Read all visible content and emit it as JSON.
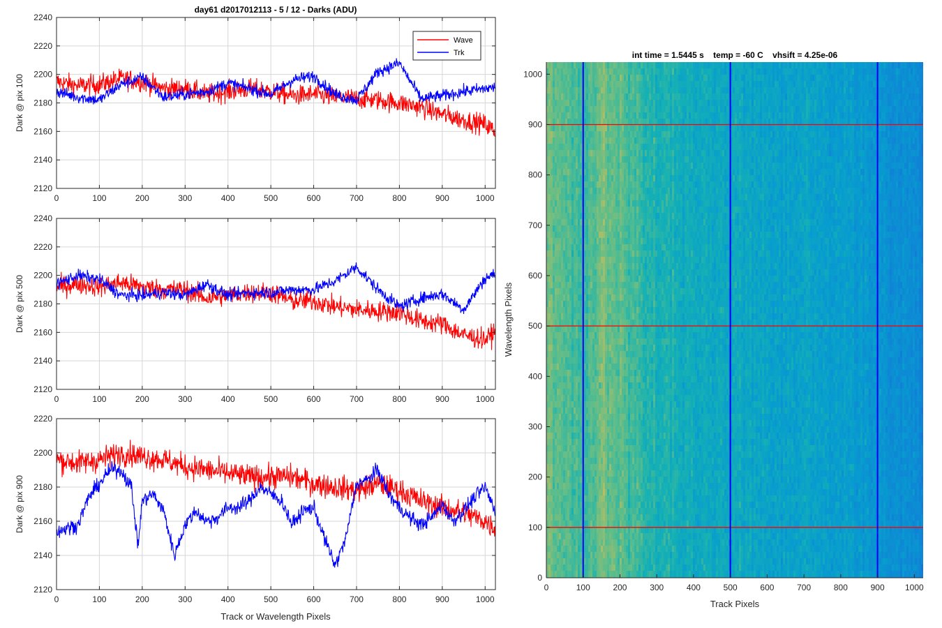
{
  "figure": {
    "main_title": "day61 d2017012113 - 5 / 12 - Darks (ADU)",
    "image_title": "int time = 1.5445 s    temp = -60 C    vhsift = 4.25e-06"
  },
  "colors": {
    "wave": "#ff0000",
    "trk": "#0000ff",
    "grid": "#d6d6d6",
    "axis": "#262626"
  },
  "chart_data": [
    {
      "type": "line",
      "ylabel": "Dark @ pix 100",
      "xlim": [
        0,
        1024
      ],
      "ylim": [
        2120,
        2240
      ],
      "xticks": [
        0,
        100,
        200,
        300,
        400,
        500,
        600,
        700,
        800,
        900,
        1000
      ],
      "yticks": [
        2120,
        2140,
        2160,
        2180,
        2200,
        2220,
        2240
      ],
      "grid": true,
      "legend": {
        "position": "top-right",
        "entries": [
          "Wave",
          "Trk"
        ]
      },
      "series": [
        {
          "name": "Wave",
          "color": "#ff0000",
          "x": [
            0,
            50,
            100,
            150,
            200,
            250,
            300,
            350,
            400,
            450,
            500,
            550,
            600,
            650,
            700,
            750,
            800,
            850,
            900,
            950,
            1000,
            1023
          ],
          "values": [
            2195,
            2192,
            2193,
            2197,
            2195,
            2190,
            2190,
            2186,
            2188,
            2190,
            2188,
            2185,
            2186,
            2184,
            2183,
            2182,
            2180,
            2177,
            2172,
            2168,
            2165,
            2160
          ]
        },
        {
          "name": "Trk",
          "color": "#0000ff",
          "x": [
            0,
            50,
            100,
            150,
            200,
            250,
            300,
            350,
            400,
            450,
            500,
            550,
            600,
            650,
            700,
            750,
            800,
            850,
            900,
            950,
            1000,
            1023
          ],
          "values": [
            2188,
            2184,
            2182,
            2193,
            2198,
            2184,
            2186,
            2188,
            2194,
            2190,
            2186,
            2196,
            2199,
            2186,
            2182,
            2202,
            2208,
            2183,
            2185,
            2188,
            2190,
            2191
          ]
        }
      ]
    },
    {
      "type": "line",
      "ylabel": "Dark @ pix 500",
      "xlim": [
        0,
        1024
      ],
      "ylim": [
        2120,
        2240
      ],
      "xticks": [
        0,
        100,
        200,
        300,
        400,
        500,
        600,
        700,
        800,
        900,
        1000
      ],
      "yticks": [
        2120,
        2140,
        2160,
        2180,
        2200,
        2220,
        2240
      ],
      "grid": true,
      "series": [
        {
          "name": "Wave",
          "color": "#ff0000",
          "x": [
            0,
            50,
            100,
            150,
            200,
            250,
            300,
            350,
            400,
            450,
            500,
            550,
            600,
            650,
            700,
            750,
            800,
            850,
            900,
            950,
            1000,
            1023
          ],
          "values": [
            2192,
            2194,
            2192,
            2195,
            2192,
            2190,
            2190,
            2184,
            2186,
            2188,
            2188,
            2182,
            2182,
            2178,
            2176,
            2175,
            2174,
            2168,
            2166,
            2158,
            2155,
            2160
          ]
        },
        {
          "name": "Trk",
          "color": "#0000ff",
          "x": [
            0,
            50,
            100,
            150,
            200,
            250,
            300,
            350,
            400,
            450,
            500,
            550,
            600,
            650,
            700,
            750,
            800,
            850,
            900,
            950,
            1000,
            1023
          ],
          "values": [
            2194,
            2200,
            2197,
            2186,
            2186,
            2188,
            2186,
            2194,
            2186,
            2188,
            2188,
            2190,
            2190,
            2196,
            2206,
            2190,
            2178,
            2184,
            2187,
            2176,
            2198,
            2201
          ]
        }
      ]
    },
    {
      "type": "line",
      "ylabel": "Dark @ pix 900",
      "xlabel": "Track or Wavelength Pixels",
      "xlim": [
        0,
        1024
      ],
      "ylim": [
        2120,
        2220
      ],
      "xticks": [
        0,
        100,
        200,
        300,
        400,
        500,
        600,
        700,
        800,
        900,
        1000
      ],
      "yticks": [
        2120,
        2140,
        2160,
        2180,
        2200,
        2220
      ],
      "grid": true,
      "series": [
        {
          "name": "Wave",
          "color": "#ff0000",
          "x": [
            0,
            50,
            100,
            150,
            200,
            250,
            300,
            350,
            400,
            450,
            500,
            550,
            600,
            650,
            700,
            750,
            800,
            850,
            900,
            950,
            1000,
            1023
          ],
          "values": [
            2196,
            2194,
            2196,
            2200,
            2198,
            2196,
            2192,
            2190,
            2188,
            2186,
            2186,
            2186,
            2182,
            2180,
            2178,
            2182,
            2178,
            2172,
            2168,
            2165,
            2160,
            2156
          ]
        },
        {
          "name": "Trk",
          "color": "#0000ff",
          "x": [
            0,
            25,
            50,
            75,
            100,
            125,
            150,
            175,
            190,
            200,
            225,
            250,
            275,
            300,
            325,
            350,
            375,
            400,
            425,
            450,
            475,
            500,
            525,
            550,
            575,
            600,
            625,
            650,
            675,
            700,
            725,
            750,
            775,
            800,
            825,
            850,
            875,
            900,
            925,
            950,
            975,
            1000,
            1023
          ],
          "values": [
            2154,
            2156,
            2158,
            2174,
            2182,
            2190,
            2190,
            2180,
            2145,
            2172,
            2176,
            2166,
            2140,
            2158,
            2166,
            2160,
            2162,
            2168,
            2168,
            2172,
            2180,
            2176,
            2172,
            2158,
            2166,
            2168,
            2150,
            2134,
            2150,
            2182,
            2184,
            2190,
            2176,
            2168,
            2162,
            2158,
            2162,
            2170,
            2160,
            2166,
            2174,
            2180,
            2166
          ]
        }
      ]
    },
    {
      "type": "heatmap",
      "title": "int time = 1.5445 s    temp = -60 C    vhsift = 4.25e-06",
      "xlabel": "Track Pixels",
      "ylabel": "Wavelength Pixels",
      "xlim": [
        0,
        1024
      ],
      "ylim": [
        0,
        1024
      ],
      "xticks": [
        0,
        100,
        200,
        300,
        400,
        500,
        600,
        700,
        800,
        900,
        1000
      ],
      "yticks": [
        0,
        100,
        200,
        300,
        400,
        500,
        600,
        700,
        800,
        900,
        1000
      ],
      "colormap": "parula",
      "column_profile": {
        "x": [
          0,
          50,
          100,
          150,
          200,
          250,
          300,
          350,
          400,
          450,
          500,
          550,
          600,
          650,
          700,
          750,
          800,
          850,
          900,
          950,
          1000,
          1024
        ],
        "level": [
          0.68,
          0.64,
          0.6,
          0.68,
          0.66,
          0.6,
          0.56,
          0.54,
          0.52,
          0.5,
          0.5,
          0.5,
          0.48,
          0.47,
          0.48,
          0.47,
          0.45,
          0.44,
          0.42,
          0.4,
          0.38,
          0.37
        ]
      },
      "marker_lines": {
        "vertical_x": [
          100,
          500,
          900
        ],
        "vertical_color": "#0000ff",
        "horizontal_y": [
          100,
          500,
          900
        ],
        "horizontal_color": "#ff0000"
      }
    }
  ]
}
